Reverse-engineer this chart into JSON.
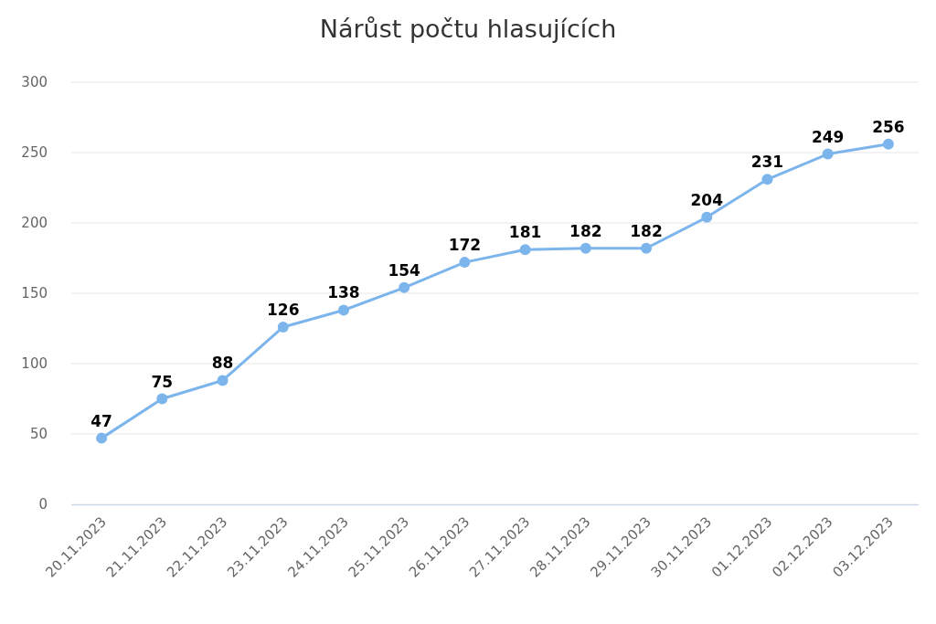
{
  "chart_data": {
    "type": "line",
    "title": "Nárůst počtu hlasujících",
    "categories": [
      "20.11.2023",
      "21.11.2023",
      "22.11.2023",
      "23.11.2023",
      "24.11.2023",
      "25.11.2023",
      "26.11.2023",
      "27.11.2023",
      "28.11.2023",
      "29.11.2023",
      "30.11.2023",
      "01.12.2023",
      "02.12.2023",
      "03.12.2023"
    ],
    "series": [
      {
        "color": "#7cb5ec",
        "values": [
          47,
          75,
          88,
          126,
          138,
          154,
          172,
          181,
          182,
          182,
          204,
          231,
          249,
          256
        ]
      }
    ],
    "ylim": [
      0,
      300
    ],
    "yticks": [
      0,
      50,
      100,
      150,
      200,
      250,
      300
    ],
    "grid": "y",
    "marker": "circle",
    "line_style": "solid",
    "data_labels": true
  }
}
